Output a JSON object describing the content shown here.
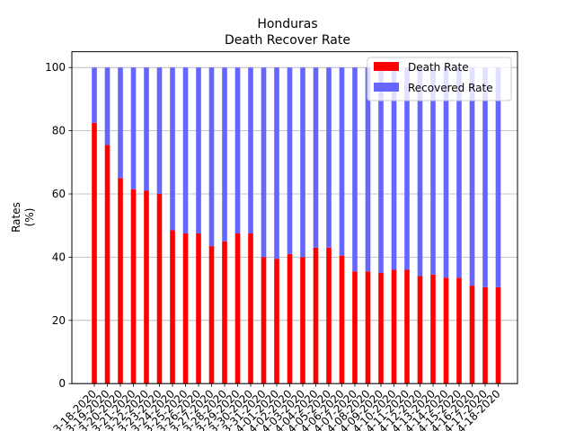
{
  "chart_data": {
    "type": "bar",
    "stacked": true,
    "title": "Honduras",
    "subtitle": "Death Recover Rate",
    "xlabel": "",
    "ylabel": "Rates\n(%)",
    "ylim": [
      0,
      105
    ],
    "yticks": [
      0,
      20,
      40,
      60,
      80,
      100
    ],
    "grid": "y",
    "legend_position": "top-right",
    "categories": [
      "3-18-2020",
      "3-19-2020",
      "3-20-2020",
      "3-21-2020",
      "3-22-2020",
      "3-23-2020",
      "3-24-2020",
      "3-25-2020",
      "3-26-2020",
      "3-27-2020",
      "3-28-2020",
      "3-29-2020",
      "3-30-2020",
      "3-31-2020",
      "4-01-2020",
      "4-02-2020",
      "4-03-2020",
      "4-04-2020",
      "4-05-2020",
      "4-06-2020",
      "4-07-2020",
      "4-08-2020",
      "4-09-2020",
      "4-10-2020",
      "4-11-2020",
      "4-12-2020",
      "4-13-2020",
      "4-14-2020",
      "4-15-2020",
      "4-16-2020",
      "4-17-2020",
      "4-18-2020"
    ],
    "series": [
      {
        "name": "Death Rate",
        "color": "#ff0000",
        "values": [
          82.5,
          75.5,
          65,
          61.5,
          61,
          60,
          48.5,
          47.5,
          47.5,
          43.5,
          45,
          47.5,
          47.5,
          40,
          39.5,
          41,
          40,
          43,
          43,
          40.5,
          35.5,
          35.5,
          35,
          36,
          36,
          34,
          34.5,
          33.5,
          33.5,
          31,
          30.5,
          30.5
        ]
      },
      {
        "name": "Recovered Rate",
        "color": "#6666ff",
        "values": [
          17.5,
          24.5,
          35,
          38.5,
          39,
          40,
          51.5,
          52.5,
          52.5,
          56.5,
          55,
          52.5,
          52.5,
          60,
          60.5,
          59,
          60,
          57,
          57,
          59.5,
          64.5,
          64.5,
          65,
          64,
          64,
          66,
          65.5,
          66.5,
          66.5,
          69,
          69.5,
          69.5
        ]
      }
    ]
  }
}
